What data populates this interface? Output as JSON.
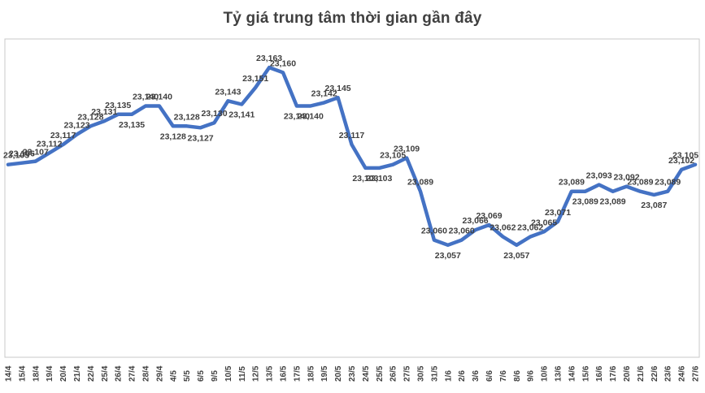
{
  "chart_data": {
    "type": "line",
    "title": "Tỷ giá trung tâm thời gian gần đây",
    "categories": [
      "14/4",
      "15/4",
      "18/4",
      "19/4",
      "20/4",
      "21/4",
      "22/4",
      "25/4",
      "26/4",
      "27/4",
      "28/4",
      "29/4",
      "4/5",
      "5/5",
      "6/5",
      "9/5",
      "10/5",
      "11/5",
      "12/5",
      "13/5",
      "16/5",
      "17/5",
      "18/5",
      "19/5",
      "20/5",
      "23/5",
      "24/5",
      "25/5",
      "26/5",
      "27/5",
      "30/5",
      "31/5",
      "1/6",
      "2/6",
      "3/6",
      "6/6",
      "7/6",
      "8/6",
      "9/6",
      "10/6",
      "13/6",
      "14/6",
      "15/6",
      "16/6",
      "17/6",
      "20/6",
      "21/6",
      "22/6",
      "23/6",
      "24/6",
      "27/6"
    ],
    "values": [
      23105,
      23106,
      23107,
      23112,
      23117,
      23123,
      23128,
      23131,
      23135,
      23135,
      23140,
      23140,
      23128,
      23128,
      23127,
      23130,
      23143,
      23141,
      23151,
      23163,
      23160,
      23140,
      23140,
      23142,
      23145,
      23117,
      23103,
      23103,
      23105,
      23109,
      23089,
      23060,
      23057,
      23060,
      23066,
      23069,
      23062,
      23057,
      23062,
      23065,
      23071,
      23089,
      23089,
      23093,
      23089,
      23092,
      23089,
      23087,
      23089,
      23102,
      23105
    ],
    "ylim": [
      22990,
      23180
    ],
    "grid": false,
    "legend": "none",
    "line_color": "#4472C4",
    "label_color": "#404040",
    "title_color": "#404040",
    "plot_border_color": "#C9C9C9",
    "background_color": "#FFFFFF",
    "data_labels_visible": true,
    "x_labels_rotation_degrees": 90
  }
}
